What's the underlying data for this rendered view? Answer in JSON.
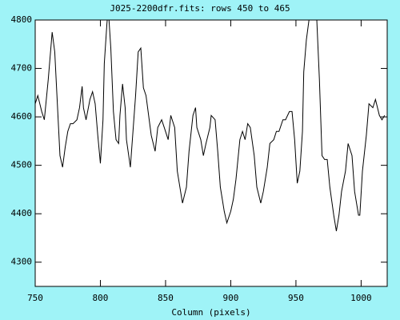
{
  "chart_data": {
    "type": "line",
    "title": "J025-2200dfr.fits: rows 450 to 465",
    "xlabel": "Column (pixels)",
    "xlim": [
      750,
      1020
    ],
    "ylim": [
      4250,
      4800
    ],
    "xticks": [
      750,
      800,
      850,
      900,
      950,
      1000
    ],
    "yticks": [
      4300,
      4400,
      4500,
      4600,
      4700,
      4800
    ],
    "background": "#9ff3f7",
    "plot_background": "#ffffff",
    "color": "#000000",
    "x": [
      750,
      752,
      755,
      757,
      760,
      762,
      763,
      765,
      767,
      769,
      771,
      773,
      775,
      777,
      779,
      782,
      784,
      786,
      787,
      789,
      792,
      794,
      796,
      798,
      800,
      802,
      803,
      805,
      806,
      808,
      810,
      812,
      814,
      815,
      817,
      819,
      820,
      823,
      825,
      827,
      829,
      831,
      833,
      835,
      837,
      839,
      842,
      844,
      847,
      849,
      852,
      854,
      857,
      859,
      862,
      863,
      866,
      868,
      871,
      873,
      874,
      877,
      879,
      881,
      884,
      885,
      888,
      890,
      892,
      895,
      897,
      900,
      902,
      904,
      907,
      909,
      911,
      913,
      915,
      918,
      920,
      923,
      925,
      928,
      930,
      933,
      935,
      937,
      940,
      942,
      945,
      947,
      949,
      951,
      953,
      955,
      956,
      958,
      960,
      962,
      964,
      966,
      968,
      970,
      972,
      974,
      976,
      979,
      981,
      983,
      985,
      988,
      990,
      993,
      995,
      998,
      999,
      1001,
      1004,
      1006,
      1009,
      1011,
      1014,
      1016,
      1018
    ],
    "values": [
      4627,
      4644,
      4611,
      4594,
      4677,
      4742,
      4775,
      4734,
      4627,
      4520,
      4496,
      4537,
      4570,
      4586,
      4586,
      4594,
      4619,
      4663,
      4619,
      4594,
      4636,
      4652,
      4627,
      4562,
      4504,
      4594,
      4710,
      4792,
      4825,
      4742,
      4611,
      4553,
      4545,
      4603,
      4668,
      4619,
      4553,
      4496,
      4570,
      4644,
      4734,
      4742,
      4660,
      4644,
      4603,
      4562,
      4529,
      4578,
      4594,
      4578,
      4553,
      4603,
      4578,
      4488,
      4438,
      4422,
      4455,
      4529,
      4603,
      4619,
      4578,
      4553,
      4520,
      4545,
      4578,
      4603,
      4594,
      4529,
      4455,
      4405,
      4381,
      4405,
      4430,
      4471,
      4553,
      4570,
      4553,
      4586,
      4578,
      4520,
      4455,
      4422,
      4446,
      4496,
      4545,
      4553,
      4570,
      4570,
      4594,
      4594,
      4611,
      4611,
      4553,
      4463,
      4488,
      4570,
      4693,
      4759,
      4800,
      4825,
      4825,
      4800,
      4677,
      4520,
      4512,
      4512,
      4455,
      4397,
      4364,
      4397,
      4446,
      4488,
      4545,
      4520,
      4446,
      4397,
      4397,
      4488,
      4562,
      4627,
      4619,
      4636,
      4603,
      4594,
      4603
    ]
  }
}
